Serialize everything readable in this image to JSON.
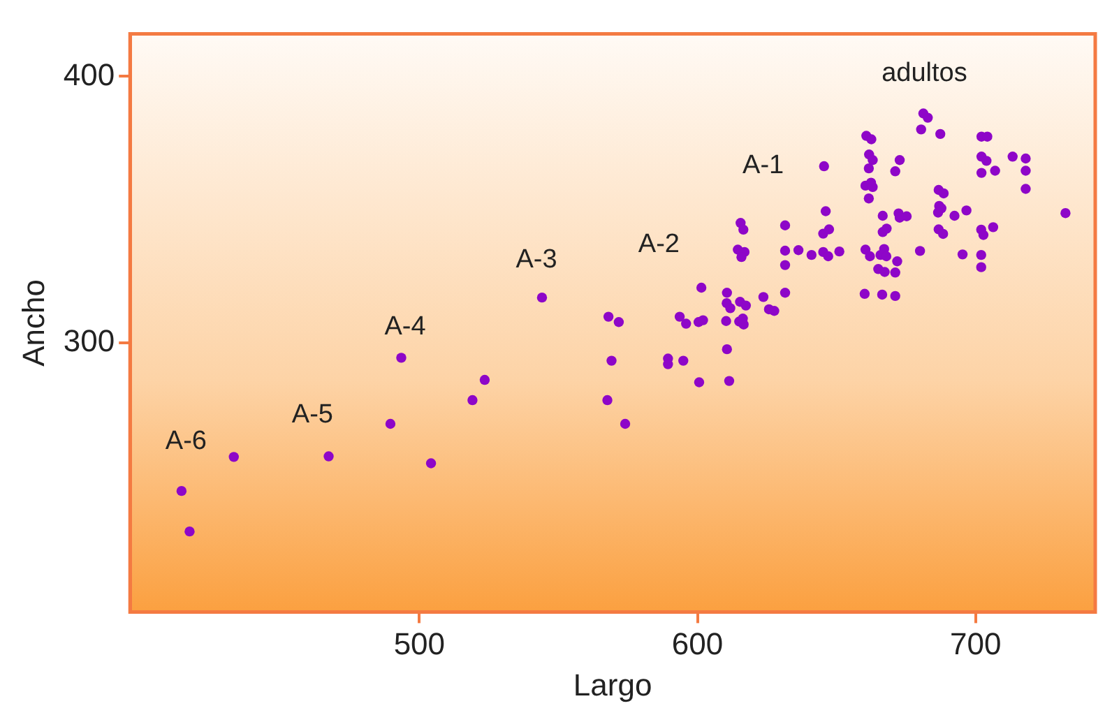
{
  "chart_data": {
    "type": "scatter",
    "xlabel": "Largo",
    "ylabel": "Ancho",
    "xlim": [
      396,
      743
    ],
    "ylim": [
      199,
      416
    ],
    "xticks": [
      500,
      600,
      700
    ],
    "yticks": [
      300,
      400
    ],
    "grid": false,
    "legend": false,
    "marker": "circle",
    "series": [
      {
        "color": "#8e06c8",
        "x": [
          414.5,
          417.4,
          433.3,
          467.4,
          489.6,
          493.5,
          504.2,
          519.1,
          523.5,
          544.1,
          568.0,
          571.7,
          569.1,
          567.6,
          574.0,
          601.4,
          593.6,
          595.9,
          600.4,
          602.0,
          589.4,
          589.4,
          594.9,
          600.6,
          610.6,
          610.5,
          611.8,
          615.3,
          617.4,
          610.3,
          615.0,
          616.6,
          616.3,
          610.6,
          611.4,
          623.7,
          625.7,
          627.6,
          631.5,
          631.5,
          631.5,
          631.5,
          636.3,
          641.0,
          645.2,
          647.0,
          651.0,
          645.2,
          647.3,
          646.1,
          645.5,
          615.5,
          616.5,
          614.5,
          616.9,
          615.8,
          660.4,
          662.0,
          660.1,
          660.7,
          662.5,
          661.7,
          663.0,
          661.6,
          660.4,
          662.4,
          663.0,
          661.6,
          672.7,
          671.1,
          681.2,
          682.8,
          680.4,
          687.3,
          702.1,
          704.2,
          702.1,
          703.9,
          702.1,
          707.0,
          713.3,
          718.0,
          718.0,
          718.0,
          732.3,
          686.7,
          688.5,
          686.9,
          687.7,
          686.5,
          692.4,
          696.7,
          686.7,
          688.3,
          666.6,
          672.3,
          672.7,
          675.2,
          666.6,
          668.0,
          680.0,
          695.3,
          702.0,
          702.8,
          706.3,
          702.0,
          702.0,
          665.8,
          667.1,
          667.9,
          671.8,
          665.0,
          667.3,
          671.1,
          666.4,
          671.1
        ],
        "values": [
          244.4,
          229.2,
          257.2,
          257.4,
          269.6,
          294.4,
          254.8,
          278.5,
          286.1,
          317.0,
          309.8,
          307.8,
          293.3,
          278.5,
          269.6,
          320.7,
          309.8,
          307.2,
          307.8,
          308.5,
          294.1,
          292.0,
          293.3,
          285.2,
          318.8,
          314.9,
          313.0,
          315.4,
          314.0,
          308.2,
          308.0,
          306.9,
          309.1,
          297.6,
          285.7,
          317.2,
          312.6,
          312.0,
          318.8,
          329.2,
          334.6,
          344.1,
          334.8,
          333.0,
          334.1,
          332.5,
          334.3,
          341.0,
          342.6,
          349.4,
          366.3,
          345.0,
          342.5,
          335.0,
          334.1,
          332.2,
          335.0,
          332.5,
          318.4,
          377.7,
          376.4,
          370.7,
          368.6,
          365.5,
          359.0,
          360.1,
          358.5,
          354.2,
          368.6,
          364.4,
          386.1,
          384.5,
          380.1,
          378.4,
          377.4,
          377.4,
          369.9,
          368.3,
          363.8,
          364.6,
          369.9,
          369.2,
          364.6,
          357.8,
          348.7,
          357.4,
          356.1,
          351.4,
          350.5,
          348.9,
          347.7,
          349.7,
          342.6,
          340.9,
          347.7,
          348.6,
          347.0,
          347.5,
          341.6,
          342.9,
          334.5,
          333.2,
          342.5,
          340.5,
          343.4,
          333.0,
          328.4,
          333.0,
          335.2,
          332.5,
          330.6,
          327.7,
          326.6,
          326.4,
          318.1,
          317.6
        ]
      }
    ],
    "annotations": [
      "A-6",
      "A-5",
      "A-4",
      "A-3",
      "A-2",
      "A-1",
      "adultos"
    ]
  }
}
